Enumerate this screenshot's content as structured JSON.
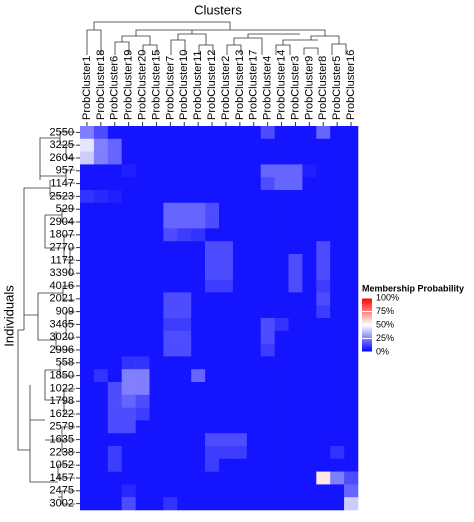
{
  "chart_data": {
    "type": "heatmap",
    "title": "Clusters",
    "y_label": "Individuals",
    "columns": [
      "ProbCluster1",
      "ProbCluster18",
      "ProbCluster6",
      "ProbCluster19",
      "ProbCluster20",
      "ProbCluster15",
      "ProbCluster7",
      "ProbCluster10",
      "ProbCluster11",
      "ProbCluster12",
      "ProbCluster2",
      "ProbCluster13",
      "ProbCluster17",
      "ProbCluster4",
      "ProbCluster14",
      "ProbCluster3",
      "ProbCluster9",
      "ProbCluster8",
      "ProbCluster5",
      "ProbCluster16"
    ],
    "rows": [
      "2550",
      "3225",
      "2604",
      "957",
      "1147",
      "2523",
      "529",
      "2904",
      "1807",
      "2770",
      "1172",
      "3390",
      "4016",
      "2021",
      "909",
      "3465",
      "3020",
      "2996",
      "558",
      "1850",
      "1022",
      "1798",
      "1622",
      "2579",
      "1635",
      "2238",
      "1052",
      "1457",
      "2475",
      "3002"
    ],
    "values": [
      [
        25,
        15,
        4,
        4,
        4,
        4,
        4,
        4,
        4,
        4,
        4,
        4,
        4,
        15,
        4,
        4,
        4,
        20,
        4,
        4
      ],
      [
        45,
        25,
        20,
        4,
        4,
        4,
        4,
        4,
        4,
        4,
        4,
        4,
        4,
        4,
        4,
        4,
        4,
        4,
        4,
        4
      ],
      [
        40,
        25,
        20,
        4,
        4,
        4,
        4,
        4,
        4,
        4,
        4,
        4,
        4,
        4,
        4,
        4,
        4,
        4,
        4,
        4
      ],
      [
        4,
        4,
        4,
        6,
        4,
        4,
        4,
        4,
        4,
        4,
        4,
        4,
        4,
        20,
        20,
        20,
        6,
        4,
        4,
        4
      ],
      [
        4,
        4,
        4,
        4,
        4,
        4,
        4,
        4,
        4,
        4,
        4,
        4,
        4,
        15,
        20,
        20,
        4,
        4,
        4,
        4
      ],
      [
        10,
        8,
        6,
        4,
        4,
        4,
        4,
        4,
        4,
        4,
        4,
        4,
        4,
        4,
        4,
        4,
        4,
        4,
        4,
        4
      ],
      [
        4,
        4,
        4,
        4,
        4,
        4,
        20,
        20,
        20,
        15,
        4,
        4,
        4,
        4,
        4,
        4,
        4,
        4,
        4,
        4
      ],
      [
        4,
        4,
        4,
        4,
        4,
        4,
        20,
        20,
        20,
        15,
        4,
        4,
        4,
        4,
        4,
        4,
        4,
        4,
        4,
        4
      ],
      [
        4,
        4,
        4,
        4,
        4,
        4,
        15,
        12,
        10,
        4,
        4,
        4,
        4,
        4,
        4,
        4,
        4,
        4,
        4,
        4
      ],
      [
        4,
        4,
        4,
        4,
        4,
        4,
        4,
        4,
        4,
        15,
        15,
        4,
        4,
        4,
        4,
        4,
        4,
        15,
        4,
        4
      ],
      [
        4,
        4,
        4,
        4,
        4,
        4,
        4,
        4,
        4,
        15,
        15,
        4,
        4,
        4,
        4,
        15,
        4,
        15,
        4,
        4
      ],
      [
        4,
        4,
        4,
        4,
        4,
        4,
        4,
        4,
        4,
        15,
        15,
        4,
        4,
        4,
        4,
        15,
        4,
        15,
        4,
        4
      ],
      [
        4,
        4,
        4,
        4,
        4,
        4,
        4,
        4,
        4,
        12,
        12,
        4,
        4,
        4,
        4,
        15,
        4,
        12,
        4,
        4
      ],
      [
        4,
        4,
        4,
        4,
        4,
        4,
        15,
        15,
        4,
        4,
        4,
        4,
        4,
        4,
        4,
        4,
        4,
        15,
        4,
        4
      ],
      [
        4,
        4,
        4,
        4,
        4,
        4,
        15,
        15,
        4,
        4,
        4,
        4,
        4,
        4,
        4,
        4,
        4,
        12,
        4,
        4
      ],
      [
        4,
        4,
        4,
        4,
        4,
        4,
        12,
        12,
        4,
        4,
        4,
        4,
        4,
        15,
        10,
        4,
        4,
        4,
        4,
        4
      ],
      [
        4,
        4,
        4,
        4,
        4,
        4,
        15,
        15,
        4,
        4,
        4,
        4,
        4,
        15,
        4,
        4,
        4,
        4,
        4,
        4
      ],
      [
        4,
        4,
        4,
        4,
        4,
        4,
        15,
        15,
        4,
        4,
        4,
        4,
        4,
        12,
        4,
        4,
        4,
        4,
        4,
        4
      ],
      [
        4,
        4,
        4,
        10,
        10,
        4,
        4,
        4,
        4,
        4,
        4,
        4,
        4,
        4,
        4,
        4,
        4,
        4,
        4,
        4
      ],
      [
        4,
        10,
        4,
        25,
        25,
        4,
        4,
        4,
        20,
        4,
        4,
        4,
        4,
        4,
        4,
        4,
        4,
        4,
        4,
        4
      ],
      [
        4,
        4,
        15,
        25,
        25,
        4,
        4,
        4,
        4,
        4,
        4,
        4,
        4,
        4,
        4,
        4,
        4,
        4,
        4,
        4
      ],
      [
        4,
        4,
        15,
        20,
        15,
        4,
        4,
        4,
        4,
        4,
        4,
        4,
        4,
        4,
        4,
        4,
        4,
        4,
        4,
        4
      ],
      [
        4,
        4,
        15,
        15,
        12,
        4,
        4,
        4,
        4,
        4,
        4,
        4,
        4,
        4,
        4,
        4,
        4,
        4,
        4,
        4
      ],
      [
        4,
        4,
        15,
        15,
        4,
        4,
        4,
        4,
        4,
        4,
        4,
        4,
        4,
        4,
        4,
        4,
        4,
        4,
        4,
        4
      ],
      [
        4,
        4,
        4,
        4,
        4,
        4,
        4,
        4,
        4,
        15,
        15,
        15,
        4,
        4,
        4,
        4,
        4,
        4,
        4,
        4
      ],
      [
        4,
        4,
        12,
        4,
        4,
        4,
        4,
        4,
        4,
        12,
        12,
        12,
        4,
        4,
        4,
        4,
        4,
        4,
        10,
        4
      ],
      [
        4,
        4,
        12,
        4,
        4,
        4,
        4,
        4,
        4,
        12,
        4,
        4,
        4,
        4,
        4,
        4,
        4,
        4,
        4,
        4
      ],
      [
        4,
        4,
        4,
        4,
        4,
        4,
        4,
        4,
        4,
        4,
        4,
        4,
        4,
        4,
        4,
        4,
        4,
        55,
        25,
        15
      ],
      [
        4,
        4,
        4,
        8,
        4,
        4,
        4,
        4,
        4,
        4,
        4,
        4,
        4,
        4,
        4,
        4,
        4,
        4,
        4,
        20
      ],
      [
        4,
        4,
        4,
        15,
        4,
        4,
        10,
        4,
        4,
        4,
        4,
        4,
        4,
        4,
        4,
        4,
        4,
        4,
        4,
        40
      ]
    ],
    "legend_title": "Membership Probability",
    "clim": [
      0,
      100
    ],
    "colors": [
      "#0000ff",
      "#ffffff",
      "#ff0000"
    ],
    "cticks": [
      {
        "value": 100,
        "label": "100%"
      },
      {
        "value": 75,
        "label": "75%"
      },
      {
        "value": 50,
        "label": "50%"
      },
      {
        "value": 25,
        "label": "25%"
      },
      {
        "value": 0,
        "label": "0%"
      }
    ]
  }
}
